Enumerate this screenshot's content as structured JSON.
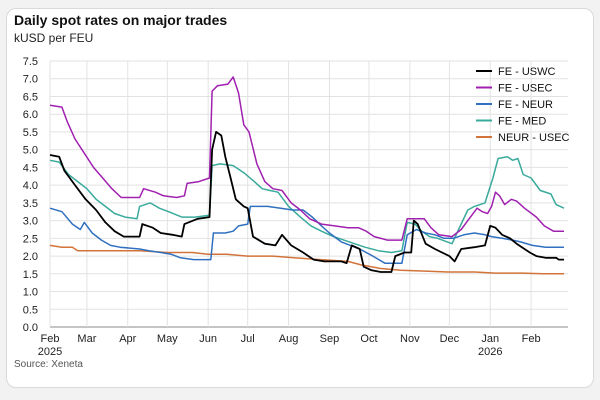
{
  "chart_data": {
    "type": "line",
    "title": "Daily spot rates on major trades",
    "subtitle": "kUSD per FEU",
    "source": "Source: Xeneta",
    "xlabel": "",
    "ylabel": "kUSD per FEU",
    "ylim": [
      0,
      7.5
    ],
    "yticks": [
      "0.0",
      "0.5",
      "1.0",
      "1.5",
      "2.0",
      "2.5",
      "3.0",
      "3.5",
      "4.0",
      "4.5",
      "5.0",
      "5.5",
      "6.0",
      "6.5",
      "7.0",
      "7.5"
    ],
    "xlim": [
      "2025-02-01",
      "2026-03-01"
    ],
    "xticks": [
      {
        "date": "2025-02-01",
        "label": "Feb",
        "sublabel": "2025"
      },
      {
        "date": "2025-03-01",
        "label": "Mar"
      },
      {
        "date": "2025-04-01",
        "label": "Apr"
      },
      {
        "date": "2025-05-01",
        "label": "May"
      },
      {
        "date": "2025-06-01",
        "label": "Jun"
      },
      {
        "date": "2025-07-01",
        "label": "Jul"
      },
      {
        "date": "2025-08-01",
        "label": "Aug"
      },
      {
        "date": "2025-09-01",
        "label": "Sep"
      },
      {
        "date": "2025-10-01",
        "label": "Oct"
      },
      {
        "date": "2025-11-01",
        "label": "Nov"
      },
      {
        "date": "2025-12-01",
        "label": "Dec"
      },
      {
        "date": "2026-01-01",
        "label": "Jan",
        "sublabel": "2026"
      },
      {
        "date": "2026-02-01",
        "label": "Feb"
      }
    ],
    "grid": true,
    "legend_position": "top-right",
    "series": [
      {
        "name": "FE - USWC",
        "color": "#000000",
        "points": [
          [
            "2025-02-01",
            4.85
          ],
          [
            "2025-02-08",
            4.8
          ],
          [
            "2025-02-12",
            4.4
          ],
          [
            "2025-02-20",
            4.0
          ],
          [
            "2025-02-28",
            3.6
          ],
          [
            "2025-03-08",
            3.3
          ],
          [
            "2025-03-15",
            2.95
          ],
          [
            "2025-03-22",
            2.7
          ],
          [
            "2025-03-29",
            2.55
          ],
          [
            "2025-04-10",
            2.55
          ],
          [
            "2025-04-12",
            2.9
          ],
          [
            "2025-04-20",
            2.8
          ],
          [
            "2025-04-26",
            2.65
          ],
          [
            "2025-05-05",
            2.6
          ],
          [
            "2025-05-12",
            2.55
          ],
          [
            "2025-05-14",
            2.9
          ],
          [
            "2025-05-24",
            3.05
          ],
          [
            "2025-06-02",
            3.1
          ],
          [
            "2025-06-04",
            5.0
          ],
          [
            "2025-06-07",
            5.5
          ],
          [
            "2025-06-11",
            5.4
          ],
          [
            "2025-06-14",
            4.8
          ],
          [
            "2025-06-18",
            4.2
          ],
          [
            "2025-06-22",
            3.6
          ],
          [
            "2025-06-28",
            3.4
          ],
          [
            "2025-07-01",
            3.35
          ],
          [
            "2025-07-05",
            2.55
          ],
          [
            "2025-07-14",
            2.35
          ],
          [
            "2025-07-22",
            2.3
          ],
          [
            "2025-07-27",
            2.6
          ],
          [
            "2025-08-03",
            2.3
          ],
          [
            "2025-08-12",
            2.1
          ],
          [
            "2025-08-20",
            1.9
          ],
          [
            "2025-08-28",
            1.85
          ],
          [
            "2025-09-05",
            1.85
          ],
          [
            "2025-09-10",
            1.85
          ],
          [
            "2025-09-14",
            1.8
          ],
          [
            "2025-09-18",
            2.3
          ],
          [
            "2025-09-24",
            2.2
          ],
          [
            "2025-09-27",
            1.7
          ],
          [
            "2025-10-03",
            1.6
          ],
          [
            "2025-10-10",
            1.55
          ],
          [
            "2025-10-18",
            1.55
          ],
          [
            "2025-10-21",
            2.0
          ],
          [
            "2025-10-28",
            2.1
          ],
          [
            "2025-11-02",
            2.1
          ],
          [
            "2025-11-04",
            3.0
          ],
          [
            "2025-11-07",
            2.9
          ],
          [
            "2025-11-13",
            2.35
          ],
          [
            "2025-11-20",
            2.2
          ],
          [
            "2025-12-01",
            2.0
          ],
          [
            "2025-12-05",
            1.85
          ],
          [
            "2025-12-10",
            2.2
          ],
          [
            "2025-12-20",
            2.25
          ],
          [
            "2025-12-28",
            2.3
          ],
          [
            "2026-01-01",
            2.85
          ],
          [
            "2026-01-05",
            2.8
          ],
          [
            "2026-01-10",
            2.6
          ],
          [
            "2026-01-16",
            2.5
          ],
          [
            "2026-01-21",
            2.35
          ],
          [
            "2026-01-31",
            2.1
          ],
          [
            "2026-02-05",
            2.0
          ],
          [
            "2026-02-12",
            1.95
          ],
          [
            "2026-02-20",
            1.95
          ],
          [
            "2026-02-22",
            1.9
          ],
          [
            "2026-02-26",
            1.9
          ]
        ]
      },
      {
        "name": "FE - USEC",
        "color": "#a020b0",
        "points": [
          [
            "2025-02-01",
            6.25
          ],
          [
            "2025-02-10",
            6.2
          ],
          [
            "2025-02-14",
            5.8
          ],
          [
            "2025-02-20",
            5.3
          ],
          [
            "2025-02-27",
            4.9
          ],
          [
            "2025-03-06",
            4.5
          ],
          [
            "2025-03-13",
            4.2
          ],
          [
            "2025-03-20",
            3.9
          ],
          [
            "2025-03-27",
            3.65
          ],
          [
            "2025-04-10",
            3.65
          ],
          [
            "2025-04-13",
            3.9
          ],
          [
            "2025-04-22",
            3.8
          ],
          [
            "2025-04-28",
            3.7
          ],
          [
            "2025-05-08",
            3.65
          ],
          [
            "2025-05-14",
            3.7
          ],
          [
            "2025-05-16",
            4.05
          ],
          [
            "2025-05-25",
            4.1
          ],
          [
            "2025-06-02",
            4.2
          ],
          [
            "2025-06-04",
            6.65
          ],
          [
            "2025-06-08",
            6.8
          ],
          [
            "2025-06-16",
            6.85
          ],
          [
            "2025-06-20",
            7.05
          ],
          [
            "2025-06-24",
            6.6
          ],
          [
            "2025-06-28",
            5.7
          ],
          [
            "2025-07-02",
            5.5
          ],
          [
            "2025-07-08",
            4.6
          ],
          [
            "2025-07-14",
            4.1
          ],
          [
            "2025-07-20",
            3.9
          ],
          [
            "2025-07-27",
            3.85
          ],
          [
            "2025-08-03",
            3.5
          ],
          [
            "2025-08-10",
            3.3
          ],
          [
            "2025-08-17",
            3.05
          ],
          [
            "2025-08-26",
            2.9
          ],
          [
            "2025-09-05",
            2.85
          ],
          [
            "2025-09-15",
            2.8
          ],
          [
            "2025-09-23",
            2.8
          ],
          [
            "2025-09-29",
            2.7
          ],
          [
            "2025-10-05",
            2.55
          ],
          [
            "2025-10-15",
            2.45
          ],
          [
            "2025-10-26",
            2.45
          ],
          [
            "2025-10-30",
            3.05
          ],
          [
            "2025-11-06",
            3.05
          ],
          [
            "2025-11-12",
            3.05
          ],
          [
            "2025-11-17",
            2.8
          ],
          [
            "2025-11-23",
            2.6
          ],
          [
            "2025-12-03",
            2.55
          ],
          [
            "2025-12-10",
            2.75
          ],
          [
            "2025-12-15",
            3.0
          ],
          [
            "2025-12-22",
            3.35
          ],
          [
            "2025-12-26",
            3.25
          ],
          [
            "2025-12-30",
            3.2
          ],
          [
            "2026-01-02",
            3.4
          ],
          [
            "2026-01-05",
            3.8
          ],
          [
            "2026-01-08",
            3.7
          ],
          [
            "2026-01-12",
            3.45
          ],
          [
            "2026-01-17",
            3.6
          ],
          [
            "2026-01-21",
            3.55
          ],
          [
            "2026-01-27",
            3.35
          ],
          [
            "2026-02-05",
            3.1
          ],
          [
            "2026-02-11",
            2.85
          ],
          [
            "2026-02-18",
            2.7
          ],
          [
            "2026-02-26",
            2.7
          ]
        ]
      },
      {
        "name": "FE - NEUR",
        "color": "#3070c0",
        "points": [
          [
            "2025-02-01",
            3.35
          ],
          [
            "2025-02-10",
            3.25
          ],
          [
            "2025-02-18",
            2.9
          ],
          [
            "2025-02-24",
            2.75
          ],
          [
            "2025-02-27",
            2.95
          ],
          [
            "2025-03-05",
            2.65
          ],
          [
            "2025-03-12",
            2.45
          ],
          [
            "2025-03-19",
            2.3
          ],
          [
            "2025-03-26",
            2.25
          ],
          [
            "2025-04-10",
            2.2
          ],
          [
            "2025-04-17",
            2.15
          ],
          [
            "2025-04-26",
            2.1
          ],
          [
            "2025-05-04",
            2.05
          ],
          [
            "2025-05-11",
            1.95
          ],
          [
            "2025-05-21",
            1.9
          ],
          [
            "2025-06-03",
            1.9
          ],
          [
            "2025-06-05",
            2.65
          ],
          [
            "2025-06-14",
            2.65
          ],
          [
            "2025-06-20",
            2.7
          ],
          [
            "2025-06-24",
            2.85
          ],
          [
            "2025-07-01",
            2.9
          ],
          [
            "2025-07-03",
            3.4
          ],
          [
            "2025-07-16",
            3.4
          ],
          [
            "2025-07-26",
            3.35
          ],
          [
            "2025-08-04",
            3.3
          ],
          [
            "2025-08-12",
            3.3
          ],
          [
            "2025-08-19",
            3.1
          ],
          [
            "2025-08-26",
            2.85
          ],
          [
            "2025-09-01",
            2.65
          ],
          [
            "2025-09-10",
            2.4
          ],
          [
            "2025-09-17",
            2.3
          ],
          [
            "2025-09-24",
            2.2
          ],
          [
            "2025-10-04",
            2.0
          ],
          [
            "2025-10-13",
            1.8
          ],
          [
            "2025-10-26",
            1.8
          ],
          [
            "2025-10-30",
            2.6
          ],
          [
            "2025-11-06",
            2.75
          ],
          [
            "2025-11-13",
            2.65
          ],
          [
            "2025-11-20",
            2.6
          ],
          [
            "2025-11-27",
            2.5
          ],
          [
            "2025-12-04",
            2.5
          ],
          [
            "2025-12-12",
            2.6
          ],
          [
            "2025-12-20",
            2.65
          ],
          [
            "2025-12-28",
            2.6
          ],
          [
            "2026-01-02",
            2.55
          ],
          [
            "2026-01-10",
            2.5
          ],
          [
            "2026-01-18",
            2.45
          ],
          [
            "2026-01-24",
            2.4
          ],
          [
            "2026-02-02",
            2.3
          ],
          [
            "2026-02-12",
            2.25
          ],
          [
            "2026-02-20",
            2.25
          ],
          [
            "2026-02-26",
            2.25
          ]
        ]
      },
      {
        "name": "FE - MED",
        "color": "#3aaa9c",
        "points": [
          [
            "2025-02-01",
            4.7
          ],
          [
            "2025-02-08",
            4.65
          ],
          [
            "2025-02-15",
            4.3
          ],
          [
            "2025-02-22",
            4.1
          ],
          [
            "2025-03-01",
            3.9
          ],
          [
            "2025-03-08",
            3.6
          ],
          [
            "2025-03-15",
            3.4
          ],
          [
            "2025-03-22",
            3.2
          ],
          [
            "2025-03-30",
            3.1
          ],
          [
            "2025-04-08",
            3.05
          ],
          [
            "2025-04-10",
            3.4
          ],
          [
            "2025-04-18",
            3.5
          ],
          [
            "2025-04-25",
            3.35
          ],
          [
            "2025-05-02",
            3.25
          ],
          [
            "2025-05-12",
            3.1
          ],
          [
            "2025-05-22",
            3.1
          ],
          [
            "2025-06-02",
            3.15
          ],
          [
            "2025-06-04",
            4.55
          ],
          [
            "2025-06-10",
            4.6
          ],
          [
            "2025-06-20",
            4.55
          ],
          [
            "2025-06-28",
            4.35
          ],
          [
            "2025-07-06",
            4.1
          ],
          [
            "2025-07-12",
            3.9
          ],
          [
            "2025-07-18",
            3.85
          ],
          [
            "2025-07-24",
            3.8
          ],
          [
            "2025-08-01",
            3.4
          ],
          [
            "2025-08-10",
            3.1
          ],
          [
            "2025-08-18",
            2.85
          ],
          [
            "2025-08-26",
            2.7
          ],
          [
            "2025-09-04",
            2.55
          ],
          [
            "2025-09-12",
            2.45
          ],
          [
            "2025-09-20",
            2.35
          ],
          [
            "2025-09-28",
            2.25
          ],
          [
            "2025-10-08",
            2.15
          ],
          [
            "2025-10-18",
            2.1
          ],
          [
            "2025-10-26",
            2.15
          ],
          [
            "2025-10-30",
            2.95
          ],
          [
            "2025-11-05",
            2.9
          ],
          [
            "2025-11-10",
            2.7
          ],
          [
            "2025-11-16",
            2.55
          ],
          [
            "2025-11-22",
            2.5
          ],
          [
            "2025-12-03",
            2.35
          ],
          [
            "2025-12-08",
            2.75
          ],
          [
            "2025-12-15",
            3.3
          ],
          [
            "2025-12-20",
            3.4
          ],
          [
            "2025-12-28",
            3.5
          ],
          [
            "2026-01-03",
            4.2
          ],
          [
            "2026-01-07",
            4.75
          ],
          [
            "2026-01-14",
            4.8
          ],
          [
            "2026-01-18",
            4.7
          ],
          [
            "2026-01-22",
            4.75
          ],
          [
            "2026-01-26",
            4.3
          ],
          [
            "2026-02-01",
            4.2
          ],
          [
            "2026-02-08",
            3.85
          ],
          [
            "2026-02-16",
            3.75
          ],
          [
            "2026-02-20",
            3.45
          ],
          [
            "2026-02-26",
            3.35
          ]
        ]
      },
      {
        "name": "NEUR - USEC",
        "color": "#d2743a",
        "points": [
          [
            "2025-02-01",
            2.3
          ],
          [
            "2025-02-10",
            2.25
          ],
          [
            "2025-02-18",
            2.25
          ],
          [
            "2025-02-22",
            2.15
          ],
          [
            "2025-03-15",
            2.15
          ],
          [
            "2025-04-10",
            2.15
          ],
          [
            "2025-05-01",
            2.1
          ],
          [
            "2025-05-20",
            2.1
          ],
          [
            "2025-06-01",
            2.05
          ],
          [
            "2025-06-15",
            2.05
          ],
          [
            "2025-07-01",
            2.0
          ],
          [
            "2025-07-20",
            2.0
          ],
          [
            "2025-08-05",
            1.95
          ],
          [
            "2025-08-25",
            1.9
          ],
          [
            "2025-09-15",
            1.85
          ],
          [
            "2025-09-25",
            1.75
          ],
          [
            "2025-10-10",
            1.65
          ],
          [
            "2025-10-25",
            1.6
          ],
          [
            "2025-11-10",
            1.58
          ],
          [
            "2025-11-30",
            1.55
          ],
          [
            "2025-12-20",
            1.55
          ],
          [
            "2026-01-05",
            1.52
          ],
          [
            "2026-01-25",
            1.52
          ],
          [
            "2026-02-10",
            1.5
          ],
          [
            "2026-02-26",
            1.5
          ]
        ]
      }
    ]
  }
}
